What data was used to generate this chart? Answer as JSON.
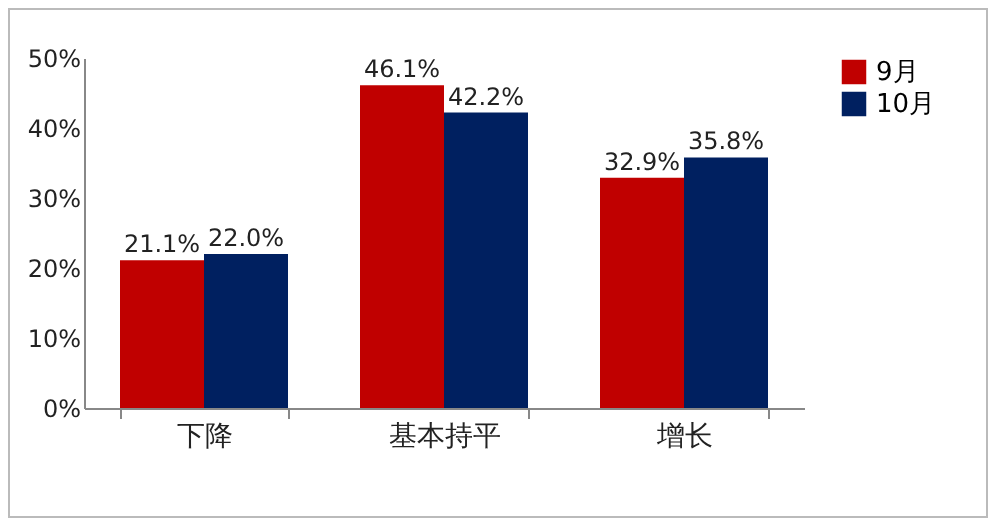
{
  "chart_data": {
    "type": "bar",
    "categories": [
      "下降",
      "基本持平",
      "增长"
    ],
    "series": [
      {
        "name": "9月",
        "color": "#c00000",
        "values": [
          21.1,
          46.1,
          32.9
        ],
        "value_labels": [
          "21.1%",
          "46.1%",
          "32.9%"
        ]
      },
      {
        "name": "10月",
        "color": "#002060",
        "values": [
          22.0,
          42.2,
          35.8
        ],
        "value_labels": [
          "22.0%",
          "42.2%",
          "35.8%"
        ]
      }
    ],
    "ylim": [
      0,
      50
    ],
    "yticks": [
      {
        "value": 0,
        "label": "0%"
      },
      {
        "value": 10,
        "label": "10%"
      },
      {
        "value": 20,
        "label": "20%"
      },
      {
        "value": 30,
        "label": "30%"
      },
      {
        "value": 40,
        "label": "40%"
      },
      {
        "value": 50,
        "label": "50%"
      }
    ],
    "grid": false,
    "legend": "right"
  }
}
